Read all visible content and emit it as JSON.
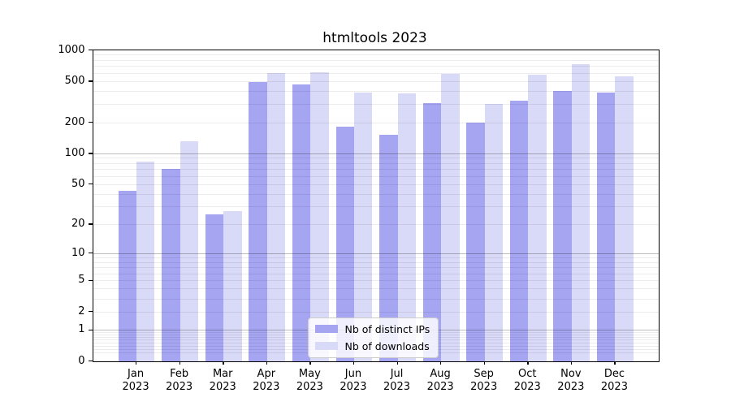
{
  "chart_data": {
    "type": "bar",
    "title": "htmltools 2023",
    "categories": [
      "Jan",
      "Feb",
      "Mar",
      "Apr",
      "May",
      "Jun",
      "Jul",
      "Aug",
      "Sep",
      "Oct",
      "Nov",
      "Dec"
    ],
    "year_label": "2023",
    "series": [
      {
        "name": "Nb of distinct IPs",
        "color": "#a5a5f2",
        "values": [
          43,
          70,
          25,
          490,
          465,
          180,
          150,
          305,
          200,
          325,
          405,
          390
        ]
      },
      {
        "name": "Nb of downloads",
        "color": "#d9d9f8",
        "values": [
          83,
          130,
          27,
          595,
          605,
          390,
          380,
          590,
          300,
          580,
          725,
          560
        ]
      }
    ],
    "xlabel": "",
    "ylabel": "",
    "yscale": "log10(1+y)",
    "ylim": [
      0,
      1000
    ],
    "ytick_values": [
      0,
      1,
      2,
      5,
      10,
      20,
      50,
      100,
      200,
      500,
      1000
    ],
    "ytick_labels": [
      "0",
      "1",
      "2",
      "5",
      "10",
      "20",
      "50",
      "100",
      "200",
      "500",
      "1000"
    ],
    "grid": "horizontal major and minor gridlines, drawn over bars",
    "legend_position": "inside plot, lower center-left",
    "frame_color": "#000000",
    "background_color": "#ffffff"
  }
}
